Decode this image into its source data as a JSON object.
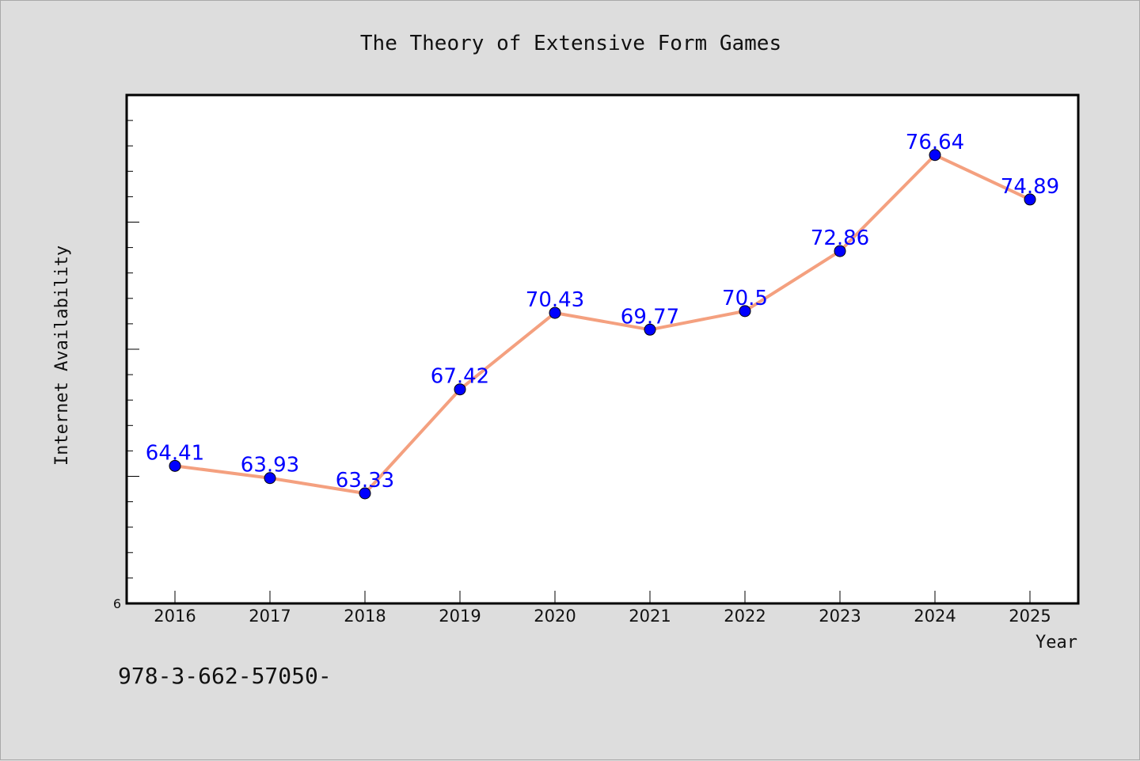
{
  "chart_data": {
    "type": "line",
    "title": "The Theory of Extensive Form Games",
    "xlabel": "Year",
    "ylabel": "Internet Availability",
    "categories": [
      "2016",
      "2017",
      "2018",
      "2019",
      "2020",
      "2021",
      "2022",
      "2023",
      "2024",
      "2025"
    ],
    "series": [
      {
        "values": [
          64.41,
          63.93,
          63.33,
          67.42,
          70.43,
          69.77,
          70.5,
          72.86,
          76.64,
          74.89
        ],
        "data_labels": [
          "64.41",
          "63.93",
          "63.33",
          "67.42",
          "70.43",
          "69.77",
          "70.5",
          "72.86",
          "76.64",
          "74.89"
        ],
        "line_color": "#f4a07f",
        "marker_color": "#0000ff"
      }
    ],
    "y_tick_labels": [
      "6"
    ],
    "ylim": [
      59.0,
      79.0
    ],
    "grid": false,
    "legend": "none",
    "background_color": "#dddddd",
    "plot_background": "#ffffff"
  },
  "footnote": "978-3-662-57050-"
}
